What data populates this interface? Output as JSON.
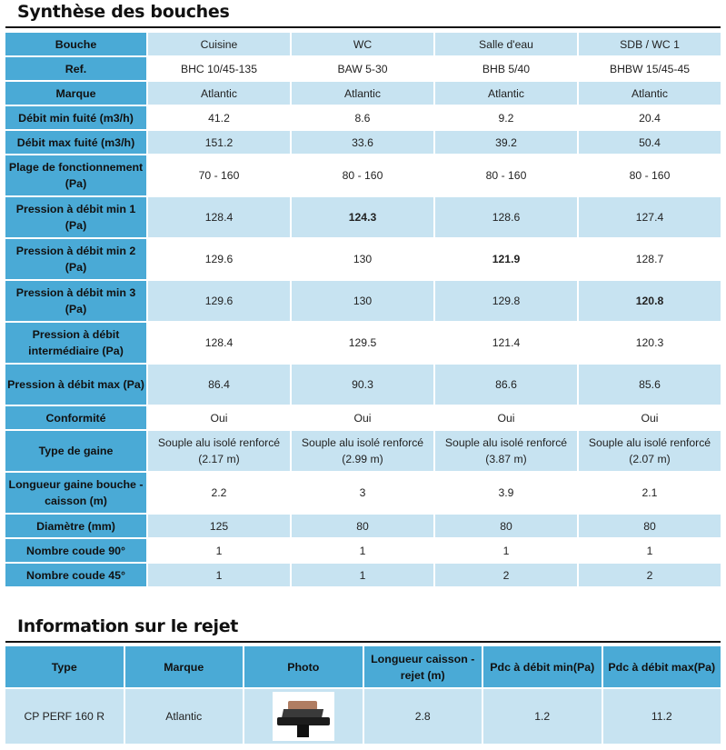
{
  "section1_title": "Synthèse des bouches",
  "section2_title": "Information sur le rejet",
  "bouches": {
    "header_label": "Bouche",
    "columns": [
      "Cuisine",
      "WC",
      "Salle d'eau",
      "SDB / WC 1"
    ],
    "rows": [
      {
        "label": "Ref.",
        "values": [
          "BHC 10/45-135",
          "BAW 5-30",
          "BHB 5/40",
          "BHBW 15/45-45"
        ]
      },
      {
        "label": "Marque",
        "values": [
          "Atlantic",
          "Atlantic",
          "Atlantic",
          "Atlantic"
        ]
      },
      {
        "label": "Débit min fuité (m3/h)",
        "values": [
          "41.2",
          "8.6",
          "9.2",
          "20.4"
        ]
      },
      {
        "label": "Débit max fuité (m3/h)",
        "values": [
          "151.2",
          "33.6",
          "39.2",
          "50.4"
        ]
      },
      {
        "label": "Plage de fonctionnement (Pa)",
        "values": [
          "70 - 160",
          "80 - 160",
          "80 - 160",
          "80 - 160"
        ]
      },
      {
        "label": "Pression à débit min 1 (Pa)",
        "values": [
          "128.4",
          "124.3",
          "128.6",
          "127.4"
        ],
        "bold_index": 1
      },
      {
        "label": "Pression à débit min 2 (Pa)",
        "values": [
          "129.6",
          "130",
          "121.9",
          "128.7"
        ],
        "bold_index": 2
      },
      {
        "label": "Pression à débit min 3 (Pa)",
        "values": [
          "129.6",
          "130",
          "129.8",
          "120.8"
        ],
        "bold_index": 3
      },
      {
        "label": "Pression à débit intermédiaire (Pa)",
        "values": [
          "128.4",
          "129.5",
          "121.4",
          "120.3"
        ]
      },
      {
        "label": "Pression à débit max (Pa)",
        "values": [
          "86.4",
          "90.3",
          "86.6",
          "85.6"
        ]
      },
      {
        "label": "Conformité",
        "values": [
          "Oui",
          "Oui",
          "Oui",
          "Oui"
        ]
      },
      {
        "label": "Type de gaine",
        "values": [
          "Souple alu isolé renforcé (2.17 m)",
          "Souple alu isolé renforcé (2.99 m)",
          "Souple alu isolé renforcé (3.87 m)",
          "Souple alu isolé renforcé (2.07 m)"
        ]
      },
      {
        "label": "Longueur gaine bouche - caisson (m)",
        "values": [
          "2.2",
          "3",
          "3.9",
          "2.1"
        ]
      },
      {
        "label": "Diamètre (mm)",
        "values": [
          "125",
          "80",
          "80",
          "80"
        ]
      },
      {
        "label": "Nombre coude 90°",
        "values": [
          "1",
          "1",
          "1",
          "1"
        ]
      },
      {
        "label": "Nombre coude 45°",
        "values": [
          "1",
          "1",
          "2",
          "2"
        ]
      }
    ]
  },
  "rejet": {
    "headers": [
      "Type",
      "Marque",
      "Photo",
      "Longueur caisson - rejet (m)",
      "Pdc à débit min(Pa)",
      "Pdc à débit max(Pa)"
    ],
    "row": {
      "type": "CP PERF 160 R",
      "marque": "Atlantic",
      "photo_icon": "roof-outlet-photo",
      "longueur": "2.8",
      "pdc_min": "1.2",
      "pdc_max": "11.2"
    }
  }
}
